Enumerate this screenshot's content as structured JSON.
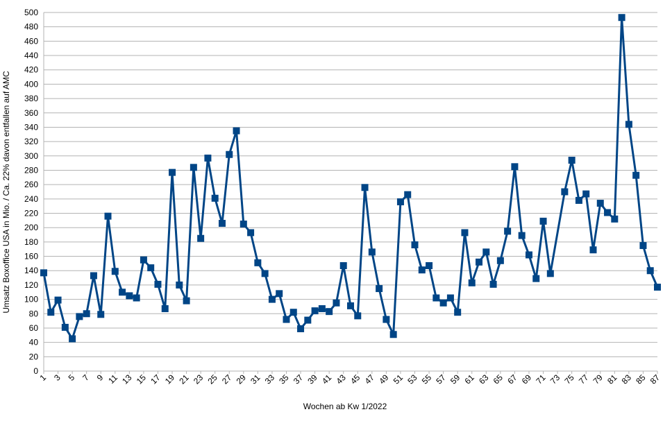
{
  "chart_data": {
    "type": "line",
    "x_label": "Wochen ab Kw 1/2022",
    "y_label": "Umsatz Boxoffice USA in Mio. / Ca. 22% davon entfallen auf AMC",
    "x": [
      1,
      2,
      3,
      4,
      5,
      6,
      7,
      8,
      9,
      10,
      11,
      12,
      13,
      14,
      15,
      16,
      17,
      18,
      19,
      20,
      21,
      22,
      23,
      24,
      25,
      26,
      27,
      28,
      29,
      30,
      31,
      32,
      33,
      34,
      35,
      36,
      37,
      38,
      39,
      40,
      41,
      42,
      43,
      44,
      45,
      46,
      47,
      48,
      49,
      50,
      51,
      52,
      53,
      54,
      55,
      56,
      57,
      58,
      59,
      60,
      61,
      62,
      63,
      64,
      65,
      66,
      67,
      68,
      69,
      70,
      71,
      72,
      74,
      75,
      76,
      77,
      78,
      79,
      80,
      81,
      82,
      83,
      84,
      85,
      86,
      87
    ],
    "series": [
      {
        "color": "#004586",
        "values": [
          137,
          82,
          99,
          61,
          45,
          76,
          80,
          133,
          79,
          216,
          139,
          110,
          105,
          102,
          155,
          144,
          121,
          87,
          277,
          120,
          98,
          284,
          185,
          297,
          241,
          206,
          302,
          335,
          205,
          193,
          151,
          136,
          100,
          108,
          72,
          82,
          59,
          71,
          84,
          87,
          83,
          95,
          147,
          91,
          77,
          256,
          166,
          115,
          72,
          51,
          236,
          246,
          176,
          141,
          147,
          102,
          95,
          102,
          82,
          193,
          123,
          152,
          166,
          121,
          154,
          195,
          285,
          189,
          162,
          129,
          209,
          136,
          250,
          294,
          238,
          247,
          169,
          234,
          221,
          212,
          493,
          344,
          273,
          175,
          140,
          117
        ]
      }
    ],
    "xlim": [
      1,
      87
    ],
    "xticks": [
      1,
      3,
      5,
      7,
      9,
      11,
      13,
      15,
      17,
      19,
      21,
      23,
      25,
      27,
      29,
      31,
      33,
      35,
      37,
      39,
      41,
      43,
      45,
      47,
      49,
      51,
      53,
      55,
      57,
      59,
      61,
      63,
      65,
      67,
      69,
      71,
      73,
      75,
      77,
      79,
      81,
      83,
      85,
      87
    ],
    "ylim": [
      0,
      500
    ],
    "yticks": [
      0,
      20,
      40,
      60,
      80,
      100,
      120,
      140,
      160,
      180,
      200,
      220,
      240,
      260,
      280,
      300,
      320,
      340,
      360,
      380,
      400,
      420,
      440,
      460,
      480,
      500
    ],
    "grid": true
  }
}
